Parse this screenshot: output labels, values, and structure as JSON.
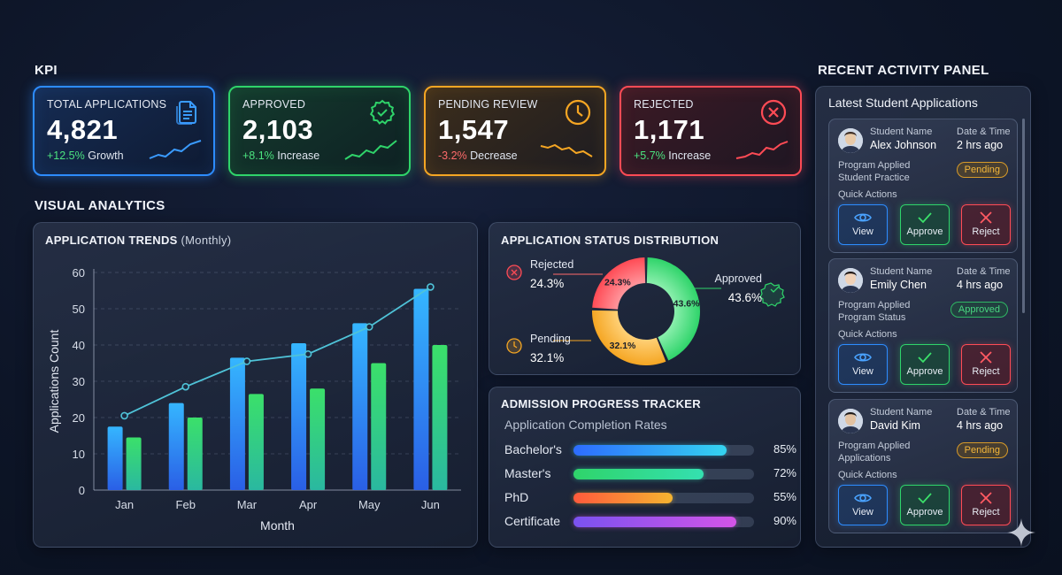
{
  "sections": {
    "kpi": "KPI",
    "visual_analytics": "VISUAL ANALYTICS",
    "recent_activity": "RECENT ACTIVITY PANEL"
  },
  "kpis": [
    {
      "label": "TOTAL APPLICATIONS",
      "value": "4,821",
      "pct": "+12.5%",
      "note": "Growth",
      "color": "#2d8cff",
      "icon": "documents-icon"
    },
    {
      "label": "APPROVED",
      "value": "2,103",
      "pct": "+8.1%",
      "note": "Increase",
      "color": "#2fd46a",
      "icon": "check-badge-icon"
    },
    {
      "label": "PENDING REVIEW",
      "value": "1,547",
      "pct": "-3.2%",
      "note": "Decrease",
      "color": "#f5a623",
      "icon": "clock-icon"
    },
    {
      "label": "REJECTED",
      "value": "1,171",
      "pct": "+5.7%",
      "note": "Increase",
      "color": "#ff4b55",
      "icon": "x-circle-icon"
    }
  ],
  "trends": {
    "title_bold": "APPLICATION TRENDS",
    "title_light": "(Monthly)"
  },
  "status": {
    "title": "APPLICATION STATUS DISTRIBUTION"
  },
  "progress": {
    "title": "ADMISSION PROGRESS TRACKER",
    "subtitle": "Application Completion Rates",
    "rows": [
      {
        "name": "Bachelor's",
        "value": 85,
        "label": "85%",
        "gradient": [
          "#2d6cff",
          "#34d4f0"
        ]
      },
      {
        "name": "Master's",
        "value": 72,
        "label": "72%",
        "gradient": [
          "#2fd46a",
          "#34e0b0"
        ]
      },
      {
        "name": "PhD",
        "value": 55,
        "label": "55%",
        "gradient": [
          "#ff5a3c",
          "#f5b430"
        ]
      },
      {
        "name": "Certificate",
        "value": 90,
        "label": "90%",
        "gradient": [
          "#7a52f0",
          "#d454e8"
        ]
      }
    ]
  },
  "activity": {
    "title": "Latest Student Applications",
    "name_label": "Student Name",
    "date_label": "Date & Time",
    "program_label": "Program Applied",
    "quick_actions": "Quick Actions",
    "view": "View",
    "approve": "Approve",
    "reject": "Reject",
    "items": [
      {
        "name": "Alex Johnson",
        "time": "2 hrs ago",
        "program": "Student Practice",
        "status": "Pending"
      },
      {
        "name": "Emily Chen",
        "time": "4 hrs ago",
        "program": "Program Status",
        "status": "Approved"
      },
      {
        "name": "David Kim",
        "time": "4 hrs ago",
        "program": "Applications",
        "status": "Pending"
      }
    ]
  },
  "chart_data": [
    {
      "type": "bar",
      "title": "APPLICATION TRENDS (Monthly)",
      "xlabel": "Month",
      "ylabel": "Applications Count",
      "categories": [
        "Jan",
        "Feb",
        "Mar",
        "Apr",
        "May",
        "Jun"
      ],
      "ylim": [
        0,
        60
      ],
      "yticks": [
        0,
        10,
        20,
        30,
        40,
        50,
        60
      ],
      "series": [
        {
          "values": [
            17.5,
            24,
            36.5,
            40.5,
            46,
            55.5
          ],
          "color": "#2d8cff"
        },
        {
          "values": [
            14.5,
            20,
            26.5,
            28,
            35,
            40
          ],
          "color": "#2fd46a"
        },
        {
          "type": "line",
          "values": [
            20.5,
            28.5,
            35.5,
            37.5,
            45,
            56
          ],
          "color": "#4fc3d8"
        }
      ],
      "grid": "horizontal dashed"
    },
    {
      "type": "pie",
      "title": "APPLICATION STATUS DISTRIBUTION",
      "donut": true,
      "slices": [
        {
          "label": "Approved",
          "value": 43.6,
          "text": "43.6%",
          "color": "#2fd46a"
        },
        {
          "label": "Pending",
          "value": 32.1,
          "text": "32.1%",
          "color": "#f5a623"
        },
        {
          "label": "Rejected",
          "value": 24.3,
          "text": "24.3%",
          "color": "#ff4b55"
        }
      ]
    }
  ]
}
